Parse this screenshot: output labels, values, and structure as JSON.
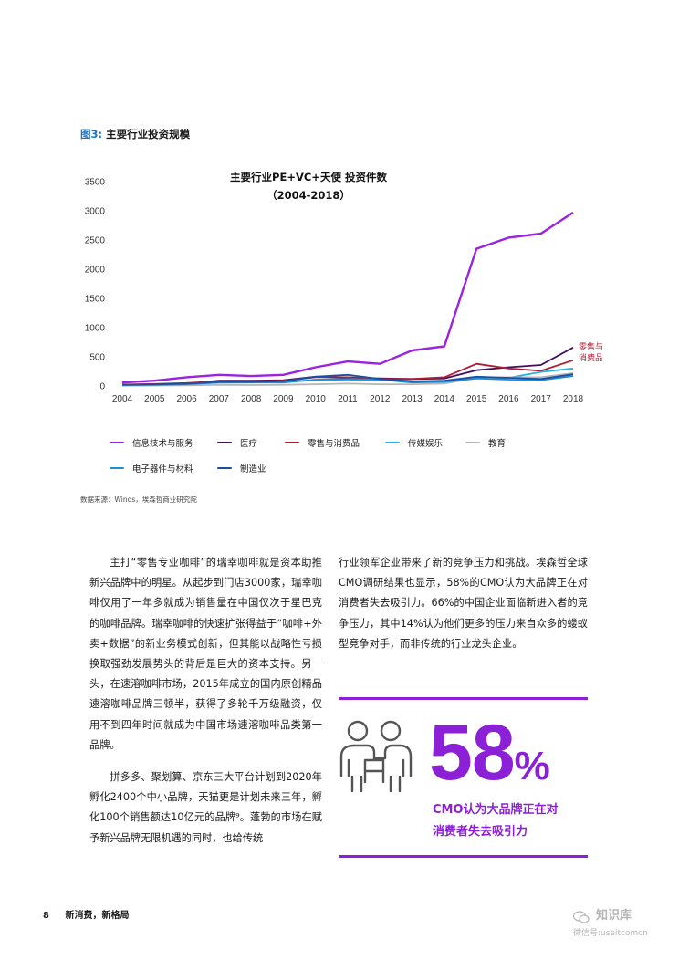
{
  "figure": {
    "label": "图3:",
    "title": "主要行业投资规模"
  },
  "chart_data": {
    "type": "line",
    "title": "主要行业PE+VC+天使 投资件数",
    "subtitle": "（2004-2018）",
    "x": [
      2004,
      2005,
      2006,
      2007,
      2008,
      2009,
      2010,
      2011,
      2012,
      2013,
      2014,
      2015,
      2016,
      2017,
      2018
    ],
    "ylim": [
      0,
      3500
    ],
    "yticks": [
      0,
      500,
      1000,
      1500,
      2000,
      2500,
      3000,
      3500
    ],
    "grid": false,
    "legend_position": "bottom",
    "series": [
      {
        "name": "信息技术与服务",
        "color": "#9b22e0",
        "values": [
          60,
          90,
          150,
          190,
          170,
          190,
          320,
          420,
          380,
          610,
          680,
          2350,
          2540,
          2610,
          2970
        ]
      },
      {
        "name": "医疗",
        "color": "#3f0f5c",
        "values": [
          20,
          30,
          40,
          90,
          90,
          100,
          160,
          140,
          130,
          120,
          130,
          270,
          320,
          360,
          660
        ]
      },
      {
        "name": "零售与消费品",
        "color": "#b01c35",
        "values": [
          25,
          35,
          50,
          80,
          80,
          90,
          150,
          150,
          120,
          120,
          150,
          380,
          300,
          260,
          440
        ]
      },
      {
        "name": "传媒娱乐",
        "color": "#1fb2e8",
        "values": [
          10,
          15,
          30,
          60,
          60,
          70,
          100,
          110,
          100,
          80,
          70,
          130,
          140,
          240,
          300
        ]
      },
      {
        "name": "教育",
        "color": "#b5b5b5",
        "values": [
          5,
          8,
          10,
          20,
          15,
          20,
          30,
          40,
          30,
          30,
          40,
          140,
          150,
          150,
          220
        ]
      },
      {
        "name": "电子器件与材料",
        "color": "#1e8fd4",
        "values": [
          15,
          20,
          30,
          60,
          60,
          60,
          110,
          120,
          110,
          60,
          70,
          130,
          110,
          100,
          170
        ]
      },
      {
        "name": "制造业",
        "color": "#1a4fa3",
        "values": [
          20,
          25,
          40,
          70,
          70,
          80,
          160,
          190,
          120,
          80,
          90,
          160,
          140,
          120,
          200
        ]
      }
    ],
    "annotation": {
      "series": "零售与消费品",
      "lines": [
        "零售与",
        "消费品"
      ]
    }
  },
  "source": "数据来源：Winds，埃森哲商业研究院",
  "body": {
    "left": [
      "主打“零售专业咖啡”的瑞幸咖啡就是资本助推新兴品牌中的明星。从起步到门店3000家，瑞幸咖啡仅用了一年多就成为销售量在中国仅次于星巴克的咖啡品牌。瑞幸咖啡的快速扩张得益于“咖啡+外卖+数据”的新业务模式创新，但其能以战略性亏损换取强劲发展势头的背后是巨大的资本支持。另一头，在速溶咖啡市场，2015年成立的国内原创精品速溶咖啡品牌三顿半，获得了多轮千万级融资，仅用不到四年时间就成为中国市场速溶咖啡品类第一品牌。",
      "拼多多、聚划算、京东三大平台计划到2020年孵化2400个中小品牌，天猫更是计划未来三年，孵化100个销售额达10亿元的品牌⁹。蓬勃的市场在赋予新兴品牌无限机遇的同时，也给传统"
    ],
    "right": "行业领军企业带来了新的竞争压力和挑战。埃森哲全球CMO调研结果也显示，58%的CMO认为大品牌正在对消费者失去吸引力。66%的中国企业面临新进入者的竞争压力，其中14%认为他们更多的压力来自众多的蝼蚁型竞争对手，而非传统的行业龙头企业。"
  },
  "stat": {
    "number": "58",
    "percent": "%",
    "caption_line1": "CMO认为大品牌正在对",
    "caption_line2": "消费者失去吸引力",
    "icon": "meeting-people-icon"
  },
  "footer": {
    "page": "8",
    "title": "新消费，新格局"
  },
  "watermark": {
    "brand": "知识库",
    "sub": "微信号:useitcomcn",
    "icon": "wechat-icon"
  }
}
